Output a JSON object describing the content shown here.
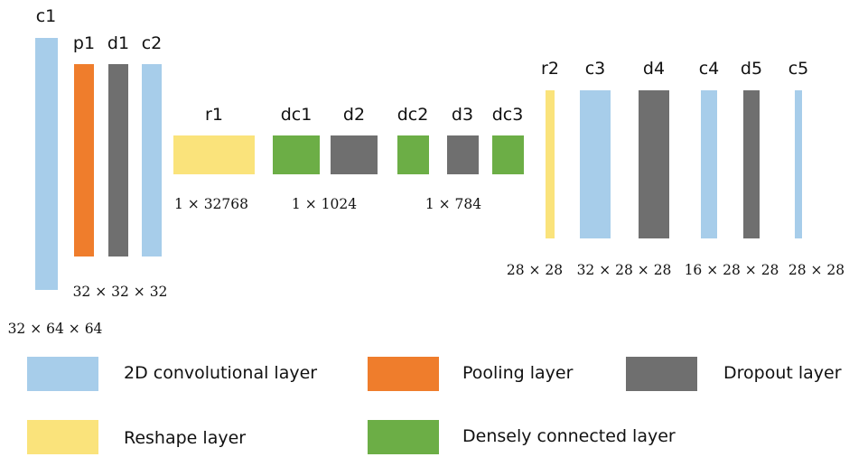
{
  "colors": {
    "convolutional": "#a7cdea",
    "pooling": "#ef7d2c",
    "dropout": "#6f6f6f",
    "reshape": "#fae37b",
    "dense": "#6cae46"
  },
  "layers": [
    {
      "id": "c1",
      "label": "c1",
      "type": "convolutional"
    },
    {
      "id": "p1",
      "label": "p1",
      "type": "pooling"
    },
    {
      "id": "d1",
      "label": "d1",
      "type": "dropout"
    },
    {
      "id": "c2",
      "label": "c2",
      "type": "convolutional"
    },
    {
      "id": "r1",
      "label": "r1",
      "type": "reshape"
    },
    {
      "id": "dc1",
      "label": "dc1",
      "type": "dense"
    },
    {
      "id": "d2",
      "label": "d2",
      "type": "dropout"
    },
    {
      "id": "dc2",
      "label": "dc2",
      "type": "dense"
    },
    {
      "id": "d3",
      "label": "d3",
      "type": "dropout"
    },
    {
      "id": "dc3",
      "label": "dc3",
      "type": "dense"
    },
    {
      "id": "r2",
      "label": "r2",
      "type": "reshape"
    },
    {
      "id": "c3",
      "label": "c3",
      "type": "convolutional"
    },
    {
      "id": "d4",
      "label": "d4",
      "type": "dropout"
    },
    {
      "id": "c4",
      "label": "c4",
      "type": "convolutional"
    },
    {
      "id": "d5",
      "label": "d5",
      "type": "dropout"
    },
    {
      "id": "c5",
      "label": "c5",
      "type": "convolutional"
    }
  ],
  "dimensions": {
    "c1": "32 × 64 × 64",
    "block1": "32 × 32 × 32",
    "r1": "1 × 32768",
    "dense1": "1 × 1024",
    "dense2": "1 × 784",
    "r2": "28 × 28",
    "c3": "32 × 28 × 28",
    "c4": "16 × 28 × 28",
    "c5": "28 × 28"
  },
  "legend": [
    {
      "type": "convolutional",
      "label": "2D convolutional layer"
    },
    {
      "type": "pooling",
      "label": "Pooling layer"
    },
    {
      "type": "dropout",
      "label": "Dropout layer"
    },
    {
      "type": "reshape",
      "label": "Reshape layer"
    },
    {
      "type": "dense",
      "label": "Densely connected layer"
    }
  ]
}
